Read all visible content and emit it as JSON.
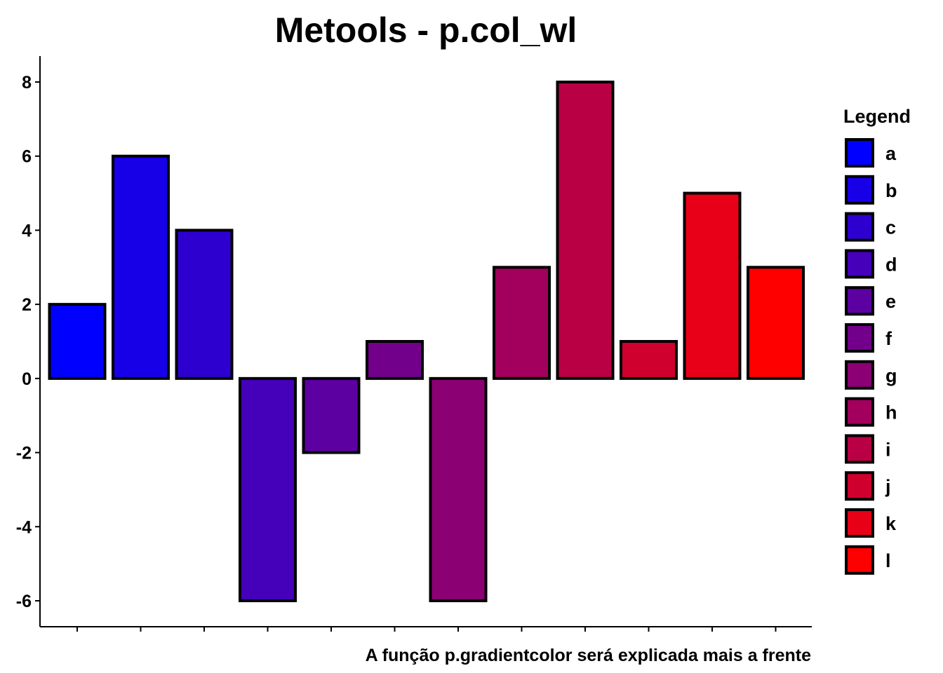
{
  "chart_data": {
    "type": "bar",
    "title": "Metools - p.col_wl",
    "caption": "A função p.gradientcolor será explicada mais a frente",
    "xlabel": "",
    "ylabel": "",
    "categories": [
      "a",
      "b",
      "c",
      "d",
      "e",
      "f",
      "g",
      "h",
      "i",
      "j",
      "k",
      "l"
    ],
    "values": [
      2,
      6,
      4,
      -6,
      -2,
      1,
      -6,
      3,
      8,
      1,
      5,
      3
    ],
    "colors": [
      "#0000FF",
      "#1700E7",
      "#2E00D0",
      "#4500B9",
      "#5C00A2",
      "#73008B",
      "#8B0073",
      "#A2005C",
      "#B90045",
      "#D0002E",
      "#E70017",
      "#FF0000"
    ],
    "ylim": [
      -6.7,
      8.7
    ],
    "yticks": [
      -6,
      -4,
      -2,
      0,
      2,
      4,
      6,
      8
    ],
    "ytick_labels": [
      "-6",
      "-4",
      "-2",
      "0",
      "2",
      "4",
      "6",
      "8"
    ],
    "x_tick_labels_visible": false,
    "grid": false,
    "bar_outline_color": "#000000",
    "legend": {
      "title": "Legend",
      "position": "right",
      "entries": [
        "a",
        "b",
        "c",
        "d",
        "e",
        "f",
        "g",
        "h",
        "i",
        "j",
        "k",
        "l"
      ]
    }
  }
}
